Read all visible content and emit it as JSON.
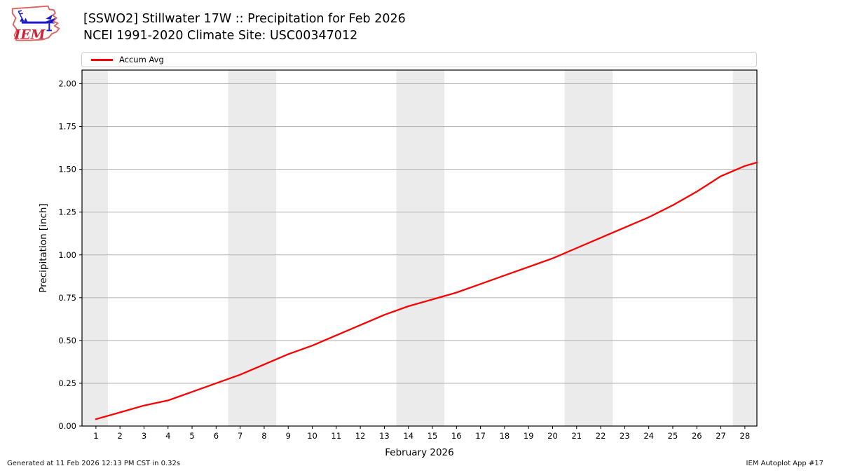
{
  "header": {
    "title_line1": "[SSWO2] Stillwater 17W :: Precipitation for Feb 2026",
    "title_line2": "NCEI 1991-2020 Climate Site: USC00347012",
    "logo_text": "IEM"
  },
  "legend": {
    "items": [
      {
        "label": "Accum Avg",
        "color": "#ff0000"
      }
    ]
  },
  "footer": {
    "left": "Generated at 11 Feb 2026 12:13 PM CST in 0.32s",
    "right": "IEM Autoplot App #17"
  },
  "chart_data": {
    "type": "line",
    "title": "[SSWO2] Stillwater 17W :: Precipitation for Feb 2026",
    "subtitle": "NCEI 1991-2020 Climate Site: USC00347012",
    "xlabel": "February 2026",
    "ylabel": "Precipitation [inch]",
    "xlim": [
      0.42,
      28.5
    ],
    "ylim": [
      0,
      2.08
    ],
    "grid": "horizontal",
    "legend_position": "top",
    "grid_color": "#b1b1b1",
    "band_color": "#ebebeb",
    "xticks": [
      1,
      2,
      3,
      4,
      5,
      6,
      7,
      8,
      9,
      10,
      11,
      12,
      13,
      14,
      15,
      16,
      17,
      18,
      19,
      20,
      21,
      22,
      23,
      24,
      25,
      26,
      27,
      28
    ],
    "yticks": {
      "values": [
        0,
        0.25,
        0.5,
        0.75,
        1.0,
        1.25,
        1.5,
        1.75,
        2.0
      ],
      "labels": [
        "0.00",
        "0.25",
        "0.50",
        "0.75",
        "1.00",
        "1.25",
        "1.50",
        "1.75",
        "2.00"
      ]
    },
    "weekend_bands": [
      [
        0.42,
        1.5
      ],
      [
        6.5,
        8.5
      ],
      [
        13.5,
        15.5
      ],
      [
        20.5,
        22.5
      ],
      [
        27.5,
        28.5
      ]
    ],
    "series": [
      {
        "name": "Accum Avg",
        "color": "#ff0000",
        "x": [
          1,
          2,
          3,
          4,
          5,
          6,
          7,
          8,
          9,
          10,
          11,
          12,
          13,
          14,
          15,
          16,
          17,
          18,
          19,
          20,
          21,
          22,
          23,
          24,
          25,
          26,
          27,
          28,
          28.5
        ],
        "values": [
          0.04,
          0.08,
          0.12,
          0.15,
          0.2,
          0.25,
          0.3,
          0.36,
          0.42,
          0.47,
          0.53,
          0.59,
          0.65,
          0.7,
          0.74,
          0.78,
          0.83,
          0.88,
          0.93,
          0.98,
          1.04,
          1.1,
          1.16,
          1.22,
          1.29,
          1.37,
          1.46,
          1.52,
          1.54
        ]
      }
    ]
  }
}
